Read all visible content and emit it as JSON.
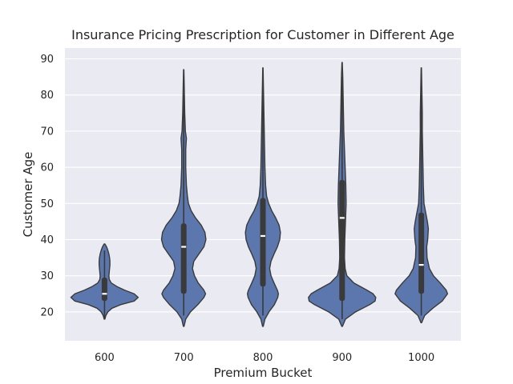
{
  "chart_data": {
    "type": "violin",
    "title": "Insurance Pricing Prescription for Customer in Different Age",
    "xlabel": "Premium Bucket",
    "ylabel": "Customer Age",
    "categories": [
      "600",
      "700",
      "800",
      "900",
      "1000"
    ],
    "ylim": [
      12,
      93
    ],
    "yticks": [
      20,
      30,
      40,
      50,
      60,
      70,
      80,
      90
    ],
    "grid": true,
    "colors": {
      "fill": "#5b77ad",
      "edge": "#3a3a3a",
      "background": "#eaeaf2",
      "grid": "#ffffff",
      "median": "#ffffff"
    },
    "violins": [
      {
        "category": "600",
        "min": 18,
        "q1": 23,
        "median": 25,
        "q3": 29.5,
        "whisker_low": 18,
        "whisker_high": 37,
        "profile": [
          [
            18,
            0.01
          ],
          [
            19,
            0.04
          ],
          [
            20,
            0.1
          ],
          [
            21,
            0.22
          ],
          [
            22,
            0.48
          ],
          [
            23,
            0.88
          ],
          [
            24,
            1.0
          ],
          [
            25,
            0.88
          ],
          [
            26,
            0.6
          ],
          [
            27,
            0.37
          ],
          [
            28,
            0.2
          ],
          [
            29,
            0.14
          ],
          [
            30,
            0.13
          ],
          [
            31,
            0.14
          ],
          [
            32,
            0.15
          ],
          [
            33,
            0.16
          ],
          [
            34,
            0.16
          ],
          [
            35,
            0.15
          ],
          [
            36,
            0.13
          ],
          [
            37,
            0.1
          ],
          [
            38,
            0.06
          ],
          [
            38.8,
            0.01
          ]
        ]
      },
      {
        "category": "700",
        "min": 16,
        "q1": 25,
        "median": 38,
        "q3": 44.5,
        "whisker_low": 19,
        "whisker_high": 80,
        "profile": [
          [
            16,
            0.01
          ],
          [
            18,
            0.06
          ],
          [
            20,
            0.2
          ],
          [
            22,
            0.42
          ],
          [
            24,
            0.6
          ],
          [
            25,
            0.65
          ],
          [
            26,
            0.6
          ],
          [
            28,
            0.43
          ],
          [
            30,
            0.32
          ],
          [
            32,
            0.26
          ],
          [
            34,
            0.3
          ],
          [
            36,
            0.45
          ],
          [
            38,
            0.6
          ],
          [
            40,
            0.66
          ],
          [
            42,
            0.63
          ],
          [
            44,
            0.52
          ],
          [
            46,
            0.35
          ],
          [
            48,
            0.22
          ],
          [
            50,
            0.14
          ],
          [
            52,
            0.11
          ],
          [
            55,
            0.08
          ],
          [
            60,
            0.06
          ],
          [
            65,
            0.06
          ],
          [
            68,
            0.08
          ],
          [
            70,
            0.05
          ],
          [
            75,
            0.03
          ],
          [
            80,
            0.02
          ],
          [
            85,
            0.01
          ],
          [
            87,
            0.005
          ]
        ]
      },
      {
        "category": "800",
        "min": 16,
        "q1": 27,
        "median": 41,
        "q3": 51.5,
        "whisker_low": 19,
        "whisker_high": 83,
        "profile": [
          [
            16,
            0.01
          ],
          [
            18,
            0.06
          ],
          [
            20,
            0.18
          ],
          [
            22,
            0.34
          ],
          [
            24,
            0.44
          ],
          [
            25,
            0.46
          ],
          [
            26,
            0.43
          ],
          [
            28,
            0.33
          ],
          [
            30,
            0.24
          ],
          [
            32,
            0.2
          ],
          [
            34,
            0.24
          ],
          [
            36,
            0.33
          ],
          [
            38,
            0.43
          ],
          [
            40,
            0.5
          ],
          [
            42,
            0.52
          ],
          [
            44,
            0.48
          ],
          [
            46,
            0.38
          ],
          [
            48,
            0.26
          ],
          [
            50,
            0.17
          ],
          [
            52,
            0.11
          ],
          [
            55,
            0.08
          ],
          [
            60,
            0.06
          ],
          [
            65,
            0.05
          ],
          [
            70,
            0.04
          ],
          [
            75,
            0.03
          ],
          [
            80,
            0.02
          ],
          [
            85,
            0.01
          ],
          [
            87.5,
            0.005
          ]
        ]
      },
      {
        "category": "900",
        "min": 16,
        "q1": 23,
        "median": 46,
        "q3": 56.5,
        "whisker_low": 18,
        "whisker_high": 85,
        "profile": [
          [
            16,
            0.01
          ],
          [
            18,
            0.1
          ],
          [
            20,
            0.4
          ],
          [
            22,
            0.82
          ],
          [
            23,
            0.98
          ],
          [
            24,
            1.0
          ],
          [
            25,
            0.92
          ],
          [
            26,
            0.74
          ],
          [
            28,
            0.35
          ],
          [
            30,
            0.14
          ],
          [
            32,
            0.09
          ],
          [
            35,
            0.07
          ],
          [
            40,
            0.08
          ],
          [
            45,
            0.1
          ],
          [
            50,
            0.12
          ],
          [
            55,
            0.11
          ],
          [
            60,
            0.09
          ],
          [
            65,
            0.07
          ],
          [
            70,
            0.05
          ],
          [
            75,
            0.04
          ],
          [
            80,
            0.03
          ],
          [
            85,
            0.02
          ],
          [
            89,
            0.005
          ]
        ]
      },
      {
        "category": "1000",
        "min": 17,
        "q1": 25,
        "median": 33,
        "q3": 47.5,
        "whisker_low": 19,
        "whisker_high": 80,
        "profile": [
          [
            17,
            0.01
          ],
          [
            19,
            0.1
          ],
          [
            21,
            0.34
          ],
          [
            23,
            0.62
          ],
          [
            25,
            0.78
          ],
          [
            26,
            0.74
          ],
          [
            28,
            0.56
          ],
          [
            30,
            0.36
          ],
          [
            32,
            0.24
          ],
          [
            35,
            0.17
          ],
          [
            38,
            0.16
          ],
          [
            40,
            0.19
          ],
          [
            43,
            0.21
          ],
          [
            45,
            0.18
          ],
          [
            48,
            0.12
          ],
          [
            50,
            0.08
          ],
          [
            55,
            0.06
          ],
          [
            60,
            0.05
          ],
          [
            65,
            0.04
          ],
          [
            70,
            0.03
          ],
          [
            75,
            0.03
          ],
          [
            80,
            0.02
          ],
          [
            85,
            0.01
          ],
          [
            87.5,
            0.005
          ]
        ]
      }
    ]
  }
}
